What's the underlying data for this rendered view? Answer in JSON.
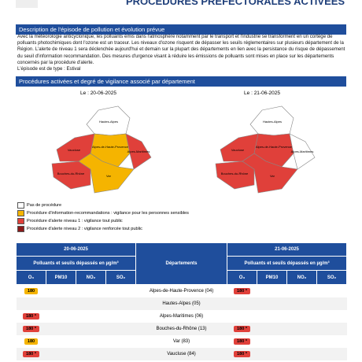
{
  "header": {
    "title": "PROCÉDURES PRÉFECTORALES ACTIVÉES"
  },
  "description": {
    "heading": "Description de l'épisode de pollution et évolution prévue",
    "text": "Avec la météorologie anticyclonique, les polluants émis dans l'atmosphère notamment par le transport et l'industrie se transforment en un cortège de polluants photochimiques dont l'ozone est un traceur. Les niveaux d'ozone risquent de dépasser les seuils réglementaires sur plusieurs département de la Région. L'alerte de niveau 1 sera déclenchée aujourd'hui et demain sur la plupart des départements en lien avec la persistance du risque de dépassement du seuil d'information recommandation. Des mesures d'urgence visant à réduire les émissions de polluants sont mises en place sur les départements concernés par la procédure d'alerte.",
    "type_line": "L'épisode est de type : Estival"
  },
  "procedures": {
    "heading": "Procédures activées et degré de vigilance associé par département",
    "maps": [
      {
        "date": "Le : 20-06-2025",
        "departments": [
          {
            "label": "Hautes-Alpes",
            "color": "#ffffff"
          },
          {
            "label": "Alpes-de-Haute-Provence",
            "color": "#f5b400"
          },
          {
            "label": "Alpes-Maritimes",
            "color": "#e0403a"
          },
          {
            "label": "Vaucluse",
            "color": "#e0403a"
          },
          {
            "label": "Bouches-du-Rhône",
            "color": "#e0403a"
          },
          {
            "label": "Var",
            "color": "#f5b400"
          }
        ]
      },
      {
        "date": "Le : 21-06-2025",
        "departments": [
          {
            "label": "Hautes-Alpes",
            "color": "#ffffff"
          },
          {
            "label": "Alpes-de-Haute-Provence",
            "color": "#e0403a"
          },
          {
            "label": "Alpes-Maritimes",
            "color": "#ffffff"
          },
          {
            "label": "Vaucluse",
            "color": "#e0403a"
          },
          {
            "label": "Bouches-du-Rhône",
            "color": "#e0403a"
          },
          {
            "label": "Var",
            "color": "#e0403a"
          }
        ]
      }
    ],
    "legend": [
      {
        "label": "Pas de procédure",
        "color": "#ffffff"
      },
      {
        "label": "Procédure d'information-recommandations : vigilance pour les personnes sensibles",
        "color": "#f5b400"
      },
      {
        "label": "Procédure d'alerte niveau 1 : vigilance tout public",
        "color": "#e0403a"
      },
      {
        "label": "Procédure d'alerte niveau 2 : vigilance renforcée tout public",
        "color": "#8b1a1a"
      }
    ]
  },
  "table": {
    "dates": [
      "20-06-2025",
      "21-06-2025"
    ],
    "pollutants_heading": "Polluants et seuils dépassés en µg/m³",
    "departments_heading": "Départements",
    "pollutants": [
      "O₃",
      "PM10",
      "NO₂",
      "SO₂"
    ],
    "rows": [
      {
        "department": "Alpes-de-Haute-Provence (04)",
        "day1": {
          "text": "180",
          "color": "#f5b400"
        },
        "day2": {
          "text": "180 *",
          "color": "#e0403a"
        }
      },
      {
        "department": "Hautes-Alpes (05)",
        "day1": null,
        "day2": null
      },
      {
        "department": "Alpes-Maritimes (06)",
        "day1": {
          "text": "180 *",
          "color": "#e0403a"
        },
        "day2": null
      },
      {
        "department": "Bouches-du-Rhône (13)",
        "day1": {
          "text": "180 *",
          "color": "#e0403a"
        },
        "day2": {
          "text": "180 *",
          "color": "#e0403a"
        }
      },
      {
        "department": "Var (83)",
        "day1": {
          "text": "180",
          "color": "#f5b400"
        },
        "day2": {
          "text": "180 *",
          "color": "#e0403a"
        }
      },
      {
        "department": "Vaucluse (84)",
        "day1": {
          "text": "180 *",
          "color": "#e0403a"
        },
        "day2": {
          "text": "180 *",
          "color": "#e0403a"
        }
      }
    ]
  }
}
